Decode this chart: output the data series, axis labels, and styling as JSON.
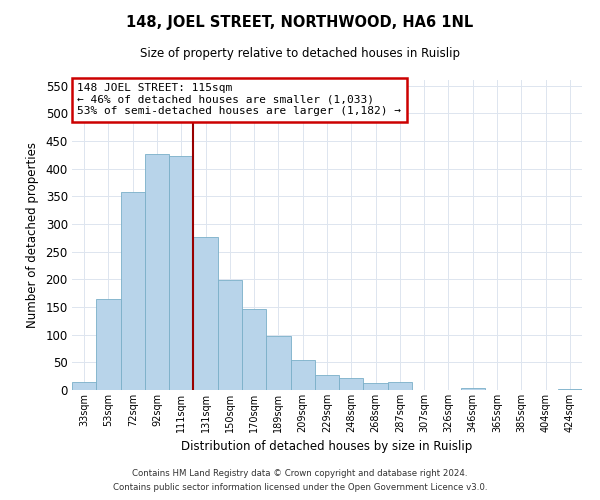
{
  "title": "148, JOEL STREET, NORTHWOOD, HA6 1NL",
  "subtitle": "Size of property relative to detached houses in Ruislip",
  "xlabel": "Distribution of detached houses by size in Ruislip",
  "ylabel": "Number of detached properties",
  "bar_labels": [
    "33sqm",
    "53sqm",
    "72sqm",
    "92sqm",
    "111sqm",
    "131sqm",
    "150sqm",
    "170sqm",
    "189sqm",
    "209sqm",
    "229sqm",
    "248sqm",
    "268sqm",
    "287sqm",
    "307sqm",
    "326sqm",
    "346sqm",
    "365sqm",
    "385sqm",
    "404sqm",
    "424sqm"
  ],
  "bar_values": [
    15,
    165,
    358,
    427,
    423,
    277,
    198,
    146,
    97,
    55,
    28,
    22,
    13,
    15,
    0,
    0,
    3,
    0,
    0,
    0,
    2
  ],
  "bar_color": "#b8d4ea",
  "bar_edge_color": "#7aafc8",
  "vline_x_index": 4,
  "vline_color": "#990000",
  "ylim": [
    0,
    560
  ],
  "yticks": [
    0,
    50,
    100,
    150,
    200,
    250,
    300,
    350,
    400,
    450,
    500,
    550
  ],
  "annotation_title": "148 JOEL STREET: 115sqm",
  "annotation_line1": "← 46% of detached houses are smaller (1,033)",
  "annotation_line2": "53% of semi-detached houses are larger (1,182) →",
  "annotation_box_color": "#ffffff",
  "annotation_box_edge": "#cc0000",
  "footer1": "Contains HM Land Registry data © Crown copyright and database right 2024.",
  "footer2": "Contains public sector information licensed under the Open Government Licence v3.0.",
  "grid_color": "#dde5ef",
  "bg_color": "#ffffff"
}
